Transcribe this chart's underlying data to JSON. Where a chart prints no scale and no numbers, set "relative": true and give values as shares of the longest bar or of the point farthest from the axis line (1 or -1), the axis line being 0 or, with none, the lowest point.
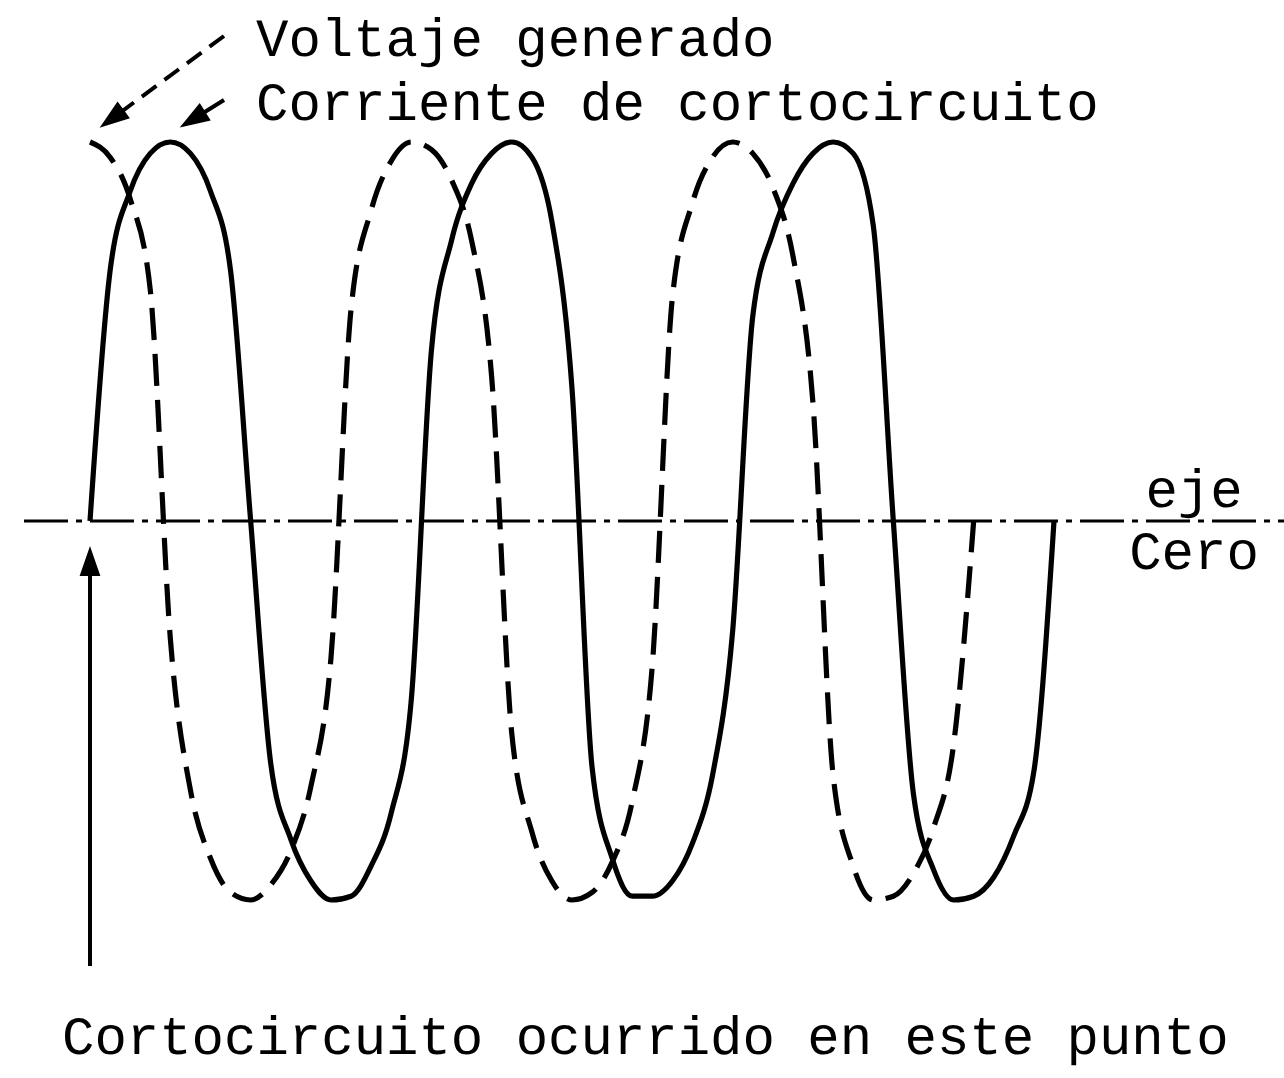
{
  "chart_data": {
    "type": "line",
    "relative": true,
    "legend": "top",
    "categories": [
      null,
      null,
      null,
      null,
      null,
      null,
      null,
      null,
      null,
      null,
      null,
      null,
      null,
      null,
      null,
      null,
      null,
      null,
      null,
      null,
      null,
      null,
      null,
      null,
      null,
      null,
      null,
      null,
      null,
      null,
      null,
      null,
      null,
      null,
      null,
      null,
      null,
      null,
      null,
      null,
      null,
      null,
      null,
      null,
      null,
      null,
      null,
      null,
      null
    ],
    "series": [
      {
        "name": "Voltaje generado",
        "color": "#000000",
        "line_style": "dashed",
        "values": [
          1,
          0.96,
          0.85,
          0.61,
          -0.31,
          -0.71,
          -0.89,
          -0.98,
          -1,
          -0.96,
          -0.87,
          -0.7,
          -0.36,
          0.56,
          0.82,
          0.95,
          1,
          0.98,
          0.9,
          0.74,
          0.38,
          -0.56,
          -0.82,
          -0.95,
          -1,
          -0.98,
          -0.9,
          -0.74,
          -0.38,
          0.59,
          0.84,
          0.96,
          1,
          0.97,
          0.88,
          0.7,
          0.31,
          -0.67,
          -0.91,
          -1,
          -0.99,
          -0.93,
          -0.81,
          -0.59,
          0,
          null,
          null,
          null,
          null
        ]
      },
      {
        "name": "Corriente de cortocircuito",
        "color": "#000000",
        "line_style": "solid",
        "values": [
          0,
          0.66,
          0.87,
          0.97,
          1,
          0.97,
          0.87,
          0.66,
          0,
          -0.64,
          -0.84,
          -0.95,
          -1,
          -0.99,
          -0.91,
          -0.77,
          -0.47,
          0.45,
          0.74,
          0.89,
          0.97,
          1,
          0.96,
          0.79,
          0.35,
          -0.65,
          -0.89,
          -0.99,
          -0.99,
          -0.95,
          -0.85,
          -0.67,
          -0.29,
          0.54,
          0.76,
          0.89,
          0.97,
          1,
          0.97,
          0.78,
          0,
          -0.72,
          -0.92,
          -1,
          -0.99,
          -0.94,
          -0.83,
          -0.66,
          0
        ]
      }
    ],
    "ref_lines": [
      {
        "axis": "y",
        "value": 0,
        "label": "eje Cero",
        "line_style": "dashed"
      }
    ],
    "annotations": [
      "Cortocircuito ocurrido en este punto"
    ]
  }
}
